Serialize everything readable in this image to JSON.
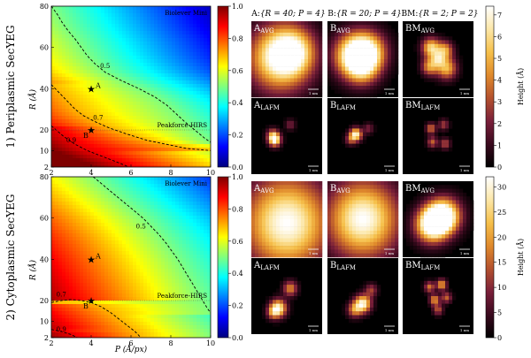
{
  "figure": {
    "row1_label": "1) Periplasmic SecYEG",
    "row2_label": "2) Cytoplasmic SecYEG",
    "col_headers": [
      {
        "prefix": "A:",
        "params": "{R = 40; P = 4}"
      },
      {
        "prefix": "B:",
        "params": "{R = 20; P = 4}"
      },
      {
        "prefix": "BM:",
        "params": "{R = 2; P = 2}"
      }
    ],
    "height_label": "Height (Å)",
    "scale_bar_label": "1 nm"
  },
  "chart_data": [
    {
      "type": "heatmap",
      "panel": "periplasmic-map",
      "xlabel": "P (Å/px)",
      "ylabel": "R (Å)",
      "xlim": [
        2,
        10
      ],
      "ylim": [
        2,
        80
      ],
      "xticks": [
        2,
        4,
        6,
        8,
        10
      ],
      "yticks": [
        2,
        10,
        20,
        40,
        60,
        80
      ],
      "grid": "dotted guide lines at R = 80 and R = 20",
      "colorbar": {
        "min": 0.0,
        "max": 1.0,
        "ticks": [
          "0.0",
          "0.2",
          "0.4",
          "0.6",
          "0.8",
          "1.0"
        ],
        "colormap": "jet"
      },
      "contours": [
        {
          "label": "0.5",
          "points": [
            [
              2.0,
              80
            ],
            [
              2.3,
              76
            ],
            [
              2.55,
              72
            ],
            [
              2.85,
              68
            ],
            [
              3.2,
              64
            ],
            [
              3.5,
              60
            ],
            [
              3.8,
              56
            ],
            [
              4.2,
              52
            ],
            [
              4.7,
              48
            ],
            [
              5.5,
              44
            ],
            [
              6.4,
              40
            ],
            [
              7.2,
              36
            ],
            [
              7.8,
              32
            ],
            [
              8.25,
              28
            ],
            [
              8.7,
              24
            ],
            [
              9.2,
              20
            ],
            [
              9.7,
              16
            ],
            [
              10.0,
              14
            ]
          ]
        },
        {
          "label": "0.7",
          "points": [
            [
              2.0,
              42
            ],
            [
              2.4,
              38
            ],
            [
              2.8,
              34
            ],
            [
              3.2,
              30
            ],
            [
              3.6,
              27
            ],
            [
              4.2,
              24
            ],
            [
              4.9,
              21
            ],
            [
              5.8,
              18
            ],
            [
              6.8,
              15
            ],
            [
              7.8,
              13
            ],
            [
              8.8,
              11
            ],
            [
              10.0,
              10
            ]
          ]
        },
        {
          "label": "0.9",
          "points": [
            [
              2.0,
              22
            ],
            [
              2.6,
              17
            ],
            [
              3.2,
              13
            ],
            [
              3.8,
              10
            ],
            [
              4.6,
              7
            ],
            [
              5.4,
              4
            ],
            [
              5.9,
              2
            ]
          ]
        }
      ],
      "contour_labels": [
        {
          "text": "0.5",
          "x": 4.7,
          "y": 50
        },
        {
          "text": "0.7",
          "x": 4.35,
          "y": 25
        },
        {
          "text": "0.9",
          "x": 3.0,
          "y": 14
        }
      ],
      "markers": [
        {
          "label": "A",
          "x": 4,
          "y": 40
        },
        {
          "label": "B",
          "x": 4,
          "y": 20
        }
      ],
      "annotations": [
        {
          "text": "Biolever Mini",
          "y": 80
        },
        {
          "text": "Peakforce-HIRS",
          "y": 20
        }
      ]
    },
    {
      "type": "heatmap",
      "panel": "cytoplasmic-map",
      "xlabel": "P (Å/px)",
      "ylabel": "R (Å)",
      "xlim": [
        2,
        10
      ],
      "ylim": [
        2,
        80
      ],
      "xticks": [
        2,
        4,
        6,
        8,
        10
      ],
      "yticks": [
        2,
        10,
        20,
        40,
        60,
        80
      ],
      "grid": "dotted guide lines at R = 80 and R = 20",
      "colorbar": {
        "min": 0.0,
        "max": 1.0,
        "ticks": [
          "0.0",
          "0.2",
          "0.4",
          "0.6",
          "0.8",
          "1.0"
        ],
        "colormap": "jet"
      },
      "contours": [
        {
          "label": "0.5",
          "points": [
            [
              4.1,
              80
            ],
            [
              4.6,
              76
            ],
            [
              5.1,
              72
            ],
            [
              5.6,
              68
            ],
            [
              6.1,
              64
            ],
            [
              6.6,
              60
            ],
            [
              7.0,
              56
            ],
            [
              7.4,
              52
            ],
            [
              7.75,
              48
            ],
            [
              8.05,
              44
            ],
            [
              8.35,
              40
            ],
            [
              8.6,
              36
            ],
            [
              8.85,
              32
            ],
            [
              9.1,
              28
            ],
            [
              9.35,
              24
            ],
            [
              9.6,
              20
            ],
            [
              9.85,
              16
            ],
            [
              10.0,
              14
            ]
          ]
        },
        {
          "label": "0.7",
          "points": [
            [
              2.0,
              19
            ],
            [
              2.5,
              20
            ],
            [
              3.0,
              20.5
            ],
            [
              3.5,
              20
            ],
            [
              4.0,
              19
            ],
            [
              4.5,
              17
            ],
            [
              5.0,
              14
            ],
            [
              5.4,
              11
            ],
            [
              5.8,
              8
            ],
            [
              6.2,
              5
            ],
            [
              6.5,
              2
            ]
          ]
        },
        {
          "label": "0.9",
          "points": [
            [
              2.0,
              6
            ],
            [
              2.5,
              5
            ],
            [
              3.0,
              3.5
            ],
            [
              3.3,
              2
            ]
          ]
        }
      ],
      "contour_labels": [
        {
          "text": "0.5",
          "x": 6.5,
          "y": 55
        },
        {
          "text": "0.7",
          "x": 2.5,
          "y": 22
        },
        {
          "text": "0.9",
          "x": 2.5,
          "y": 5
        }
      ],
      "markers": [
        {
          "label": "A",
          "x": 4,
          "y": 40
        },
        {
          "label": "B",
          "x": 4,
          "y": 20
        }
      ],
      "annotations": [
        {
          "text": "Biolever Mini",
          "y": 80
        },
        {
          "text": "Peakforce-HIRS",
          "y": 20
        }
      ]
    }
  ],
  "tiles": {
    "row1": [
      {
        "id": "A",
        "sub": "AVG",
        "type": "avg",
        "blobs": [
          [
            0.4,
            0.48,
            0.3,
            1.0
          ],
          [
            0.6,
            0.4,
            0.2,
            0.55
          ]
        ]
      },
      {
        "id": "B",
        "sub": "AVG",
        "type": "avg",
        "blobs": [
          [
            0.38,
            0.45,
            0.2,
            1.0
          ],
          [
            0.58,
            0.4,
            0.18,
            0.7
          ],
          [
            0.5,
            0.62,
            0.16,
            0.45
          ]
        ]
      },
      {
        "id": "BM",
        "sub": "AVG",
        "type": "avg",
        "blobs": [
          [
            0.4,
            0.35,
            0.09,
            0.8
          ],
          [
            0.6,
            0.38,
            0.08,
            0.6
          ],
          [
            0.38,
            0.6,
            0.08,
            0.6
          ],
          [
            0.62,
            0.62,
            0.1,
            0.7
          ],
          [
            0.5,
            0.5,
            0.07,
            0.5
          ]
        ]
      },
      {
        "id": "A",
        "sub": "LAFM",
        "type": "lafm",
        "blobs": [
          [
            0.33,
            0.55,
            0.06,
            1.0
          ],
          [
            0.3,
            0.48,
            0.06,
            0.45
          ],
          [
            0.55,
            0.35,
            0.05,
            0.3
          ]
        ]
      },
      {
        "id": "B",
        "sub": "LAFM",
        "type": "lafm",
        "blobs": [
          [
            0.4,
            0.48,
            0.06,
            1.0
          ],
          [
            0.32,
            0.55,
            0.05,
            0.35
          ],
          [
            0.58,
            0.4,
            0.05,
            0.3
          ]
        ]
      },
      {
        "id": "BM",
        "sub": "LAFM",
        "type": "lafm",
        "blobs": [
          [
            0.4,
            0.4,
            0.05,
            0.55
          ],
          [
            0.58,
            0.35,
            0.05,
            0.4
          ],
          [
            0.42,
            0.58,
            0.05,
            0.5
          ],
          [
            0.6,
            0.6,
            0.05,
            0.45
          ]
        ]
      }
    ],
    "row2": [
      {
        "id": "A",
        "sub": "AVG",
        "type": "avg",
        "blobs": [
          [
            0.5,
            0.55,
            0.42,
            1.0
          ]
        ]
      },
      {
        "id": "B",
        "sub": "AVG",
        "type": "avg",
        "blobs": [
          [
            0.5,
            0.5,
            0.35,
            1.0
          ]
        ]
      },
      {
        "id": "BM",
        "sub": "AVG",
        "type": "avg",
        "blobs": [
          [
            0.4,
            0.58,
            0.16,
            0.95
          ],
          [
            0.6,
            0.45,
            0.16,
            0.9
          ],
          [
            0.5,
            0.5,
            0.14,
            0.5
          ]
        ]
      },
      {
        "id": "A",
        "sub": "LAFM",
        "type": "lafm",
        "blobs": [
          [
            0.38,
            0.66,
            0.08,
            1.0
          ],
          [
            0.55,
            0.4,
            0.07,
            0.6
          ],
          [
            0.3,
            0.72,
            0.06,
            0.4
          ]
        ]
      },
      {
        "id": "B",
        "sub": "LAFM",
        "type": "lafm",
        "blobs": [
          [
            0.5,
            0.6,
            0.08,
            1.0
          ],
          [
            0.38,
            0.68,
            0.07,
            0.55
          ],
          [
            0.62,
            0.42,
            0.06,
            0.4
          ]
        ]
      },
      {
        "id": "BM",
        "sub": "LAFM",
        "type": "lafm",
        "blobs": [
          [
            0.38,
            0.38,
            0.05,
            0.55
          ],
          [
            0.55,
            0.35,
            0.05,
            0.7
          ],
          [
            0.62,
            0.52,
            0.05,
            0.5
          ],
          [
            0.45,
            0.55,
            0.05,
            0.65
          ],
          [
            0.5,
            0.68,
            0.05,
            0.45
          ]
        ]
      }
    ]
  },
  "height_colorbars": [
    {
      "min": 0,
      "max": 7.4,
      "ticks": [
        "0",
        "1",
        "2",
        "3",
        "4",
        "5",
        "6",
        "7"
      ],
      "tick_values": [
        0,
        1,
        2,
        3,
        4,
        5,
        6,
        7
      ],
      "colormap": "afmhot"
    },
    {
      "min": 0,
      "max": 32,
      "ticks": [
        "0",
        "5",
        "10",
        "15",
        "20",
        "25",
        "30"
      ],
      "tick_values": [
        0,
        5,
        10,
        15,
        20,
        25,
        30
      ],
      "colormap": "afmhot"
    }
  ],
  "colors": {
    "jet_stops": [
      "#00007f",
      "#0000ff",
      "#007fff",
      "#00ffff",
      "#7fff7f",
      "#ffff00",
      "#ff7f00",
      "#ff0000",
      "#7f0000"
    ],
    "hot_stops": [
      "#000000",
      "#3a0a1e",
      "#7a1f3a",
      "#b4512e",
      "#e08a2c",
      "#f6c04a",
      "#fce7a8",
      "#ffffff"
    ]
  }
}
